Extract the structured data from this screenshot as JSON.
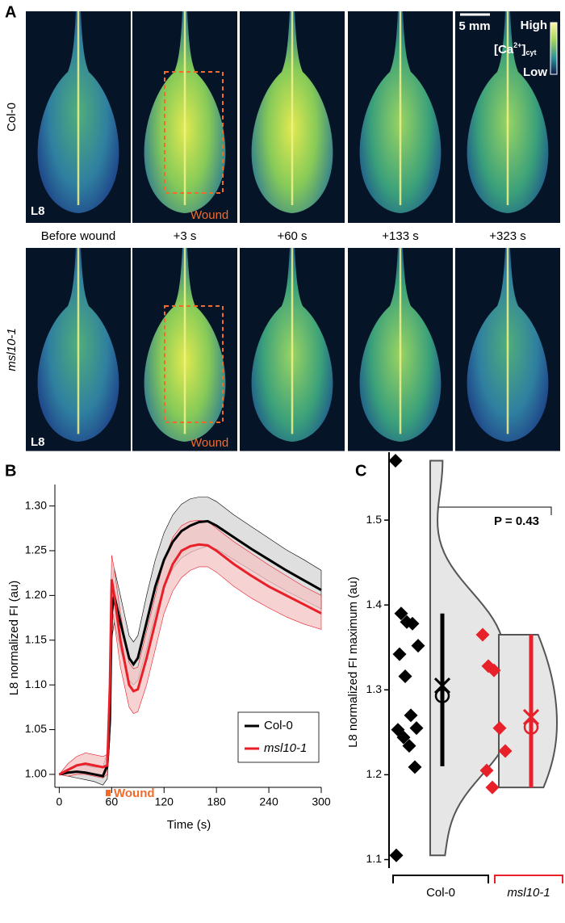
{
  "panel_a": {
    "label": "A",
    "rows": [
      "Col-0",
      "msl10-1"
    ],
    "leaf_label": "L8",
    "wound_label": "Wound",
    "times": [
      "Before wound",
      "+3 s",
      "+60 s",
      "+133 s",
      "+323 s"
    ],
    "scale_bar": "5 mm",
    "colorbar_high": "High",
    "colorbar_low": "Low",
    "colorbar_title": "[Ca",
    "colorbar_sup": "2+",
    "colorbar_close": "]",
    "colorbar_sub": "cyt"
  },
  "chart_data": [
    {
      "type": "line",
      "label": "B",
      "x_label": "Time (s)",
      "y_label": "L8 normalized FI (au)",
      "annotation": "Wound",
      "xlim": [
        -5,
        300
      ],
      "ylim": [
        0.9855,
        1.324
      ],
      "xticks": [
        0,
        60,
        120,
        180,
        240,
        300
      ],
      "yticks": [
        {
          "value": 1.0,
          "label": "1.00"
        },
        {
          "value": 1.05,
          "label": "1.05"
        },
        {
          "value": 1.1,
          "label": "1.10"
        },
        {
          "value": 1.15,
          "label": "1.15"
        },
        {
          "value": 1.2,
          "label": "1.20"
        },
        {
          "value": 1.25,
          "label": "1.25"
        },
        {
          "value": 1.3,
          "label": "1.30"
        }
      ],
      "x": [
        0,
        10,
        20,
        30,
        40,
        50,
        55,
        58,
        60,
        63,
        70,
        80,
        85,
        90,
        100,
        110,
        120,
        130,
        140,
        150,
        160,
        170,
        180,
        200,
        220,
        240,
        260,
        280,
        300
      ],
      "series": [
        {
          "name": "Col-0",
          "color": "#000000",
          "band_color": "#d4d4d4",
          "values": [
            1.0,
            1.002,
            1.003,
            1.002,
            1.0,
            0.998,
            1.01,
            1.06,
            1.18,
            1.2,
            1.17,
            1.13,
            1.123,
            1.13,
            1.17,
            1.21,
            1.24,
            1.26,
            1.272,
            1.278,
            1.282,
            1.283,
            1.278,
            1.265,
            1.252,
            1.24,
            1.228,
            1.217,
            1.206
          ],
          "lower": [
            1.0,
            0.998,
            0.996,
            0.994,
            0.992,
            0.988,
            0.995,
            1.04,
            1.15,
            1.17,
            1.14,
            1.105,
            1.1,
            1.105,
            1.14,
            1.18,
            1.21,
            1.23,
            1.242,
            1.248,
            1.252,
            1.255,
            1.252,
            1.24,
            1.228,
            1.216,
            1.205,
            1.195,
            1.185
          ],
          "upper": [
            1.0,
            1.006,
            1.01,
            1.01,
            1.008,
            1.008,
            1.025,
            1.08,
            1.21,
            1.23,
            1.2,
            1.155,
            1.148,
            1.155,
            1.2,
            1.24,
            1.27,
            1.29,
            1.302,
            1.308,
            1.31,
            1.31,
            1.305,
            1.29,
            1.277,
            1.264,
            1.251,
            1.24,
            1.228
          ]
        },
        {
          "name": "msl10-1",
          "color": "#e8202a",
          "band_color": "#f3c3c3",
          "values": [
            1.0,
            1.005,
            1.01,
            1.012,
            1.01,
            1.008,
            1.01,
            1.1,
            1.218,
            1.2,
            1.15,
            1.1,
            1.093,
            1.095,
            1.13,
            1.17,
            1.21,
            1.235,
            1.25,
            1.255,
            1.257,
            1.256,
            1.25,
            1.235,
            1.222,
            1.21,
            1.2,
            1.19,
            1.18
          ],
          "lower": [
            1.0,
            0.998,
            1.0,
            1.0,
            0.998,
            0.996,
            1.0,
            1.07,
            1.19,
            1.17,
            1.12,
            1.075,
            1.068,
            1.07,
            1.1,
            1.14,
            1.18,
            1.205,
            1.22,
            1.228,
            1.232,
            1.232,
            1.226,
            1.21,
            1.197,
            1.186,
            1.176,
            1.168,
            1.162
          ],
          "upper": [
            1.0,
            1.012,
            1.02,
            1.024,
            1.022,
            1.02,
            1.022,
            1.13,
            1.245,
            1.23,
            1.18,
            1.125,
            1.118,
            1.12,
            1.16,
            1.2,
            1.24,
            1.265,
            1.278,
            1.283,
            1.284,
            1.283,
            1.275,
            1.26,
            1.247,
            1.234,
            1.222,
            1.21,
            1.2
          ]
        }
      ],
      "legend": "lower-right"
    },
    {
      "type": "violin",
      "label": "C",
      "y_label": "L8 normalized FI maximum (au)",
      "annotation": "P = 0.43",
      "ylim": [
        1.09,
        1.58
      ],
      "yticks": [
        {
          "value": 1.1,
          "label": "1.1"
        },
        {
          "value": 1.2,
          "label": "1.2"
        },
        {
          "value": 1.3,
          "label": "1.3"
        },
        {
          "value": 1.4,
          "label": "1.4"
        },
        {
          "value": 1.5,
          "label": "1.5"
        }
      ],
      "groups": [
        {
          "name": "Col-0",
          "color": "#000000",
          "points": [
            1.57,
            1.39,
            1.38,
            1.378,
            1.352,
            1.342,
            1.316,
            1.27,
            1.255,
            1.253,
            1.244,
            1.234,
            1.209,
            1.105
          ],
          "mean": 1.305,
          "median": 1.293,
          "error_low": 1.21,
          "error_high": 1.39
        },
        {
          "name": "msl10-1",
          "color": "#e8202a",
          "points": [
            1.365,
            1.328,
            1.323,
            1.255,
            1.228,
            1.205,
            1.185
          ],
          "mean": 1.268,
          "median": 1.256,
          "error_low": 1.185,
          "error_high": 1.365
        }
      ]
    }
  ]
}
